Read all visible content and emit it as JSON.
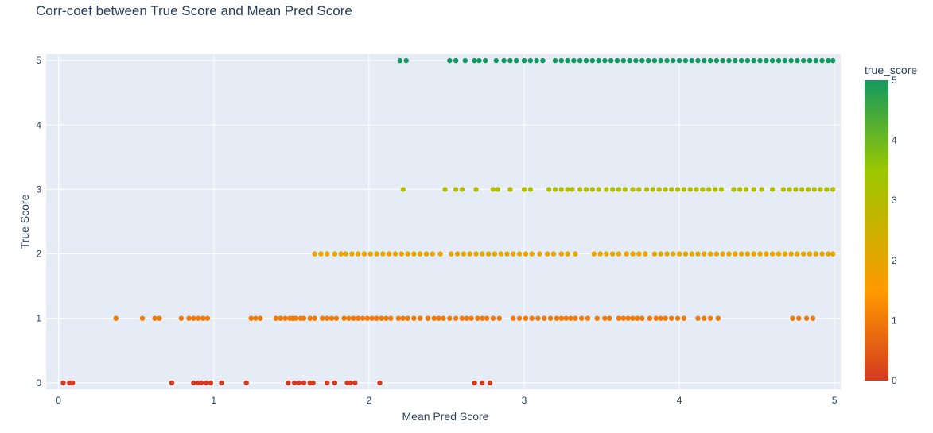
{
  "chart_data": {
    "type": "scatter",
    "title": "Corr-coef between True Score and Mean Pred Score",
    "xlabel": "Mean Pred Score",
    "ylabel": "True Score",
    "xlim": [
      -0.08,
      5.04
    ],
    "ylim": [
      -0.1,
      5.1
    ],
    "x_ticks": [
      "0",
      "1",
      "2",
      "3",
      "4",
      "5"
    ],
    "y_ticks": [
      "0",
      "1",
      "2",
      "3",
      "4",
      "5"
    ],
    "grid": true,
    "colorbar": {
      "title": "true_score",
      "range": [
        0,
        5
      ],
      "ticks": [
        "0",
        "1",
        "2",
        "3",
        "4",
        "5"
      ],
      "colors": [
        "#d33a1f",
        "#ff9a00",
        "#9ac700",
        "#13995f"
      ]
    },
    "series": [
      {
        "y": 0,
        "x": [
          0.03,
          0.07,
          0.08,
          0.09,
          0.73,
          0.87,
          0.9,
          0.92,
          0.95,
          0.98,
          1.05,
          1.21,
          1.48,
          1.52,
          1.55,
          1.58,
          1.62,
          1.64,
          1.73,
          1.78,
          1.86,
          1.88,
          1.91,
          2.07,
          2.68,
          2.73,
          2.78
        ]
      },
      {
        "y": 1,
        "x": [
          0.37,
          0.54,
          0.62,
          0.65,
          0.79,
          0.84,
          0.87,
          0.9,
          0.93,
          0.96,
          1.24,
          1.27,
          1.3,
          1.4,
          1.43,
          1.46,
          1.49,
          1.51,
          1.53,
          1.56,
          1.58,
          1.62,
          1.65,
          1.7,
          1.73,
          1.76,
          1.79,
          1.84,
          1.87,
          1.9,
          1.93,
          1.96,
          1.99,
          2.02,
          2.05,
          2.08,
          2.11,
          2.14,
          2.19,
          2.22,
          2.25,
          2.29,
          2.33,
          2.38,
          2.42,
          2.45,
          2.48,
          2.52,
          2.56,
          2.6,
          2.63,
          2.66,
          2.7,
          2.73,
          2.76,
          2.8,
          2.84,
          2.93,
          2.97,
          3.01,
          3.05,
          3.09,
          3.13,
          3.17,
          3.21,
          3.24,
          3.27,
          3.3,
          3.33,
          3.37,
          3.41,
          3.47,
          3.52,
          3.55,
          3.61,
          3.64,
          3.67,
          3.7,
          3.73,
          3.76,
          3.81,
          3.85,
          3.88,
          3.91,
          3.95,
          3.99,
          4.03,
          4.12,
          4.16,
          4.2,
          4.25,
          4.73,
          4.77,
          4.82,
          4.86
        ]
      },
      {
        "y": 2,
        "x": [
          1.65,
          1.69,
          1.73,
          1.78,
          1.82,
          1.85,
          1.89,
          1.93,
          1.97,
          2.01,
          2.05,
          2.09,
          2.13,
          2.17,
          2.21,
          2.25,
          2.29,
          2.33,
          2.37,
          2.41,
          2.46,
          2.53,
          2.57,
          2.61,
          2.65,
          2.69,
          2.73,
          2.77,
          2.81,
          2.85,
          2.89,
          2.93,
          2.97,
          3.01,
          3.05,
          3.1,
          3.15,
          3.19,
          3.24,
          3.28,
          3.33,
          3.45,
          3.49,
          3.53,
          3.57,
          3.61,
          3.66,
          3.7,
          3.74,
          3.78,
          3.84,
          3.88,
          3.92,
          3.96,
          4.0,
          4.04,
          4.08,
          4.12,
          4.16,
          4.2,
          4.24,
          4.28,
          4.32,
          4.36,
          4.4,
          4.44,
          4.48,
          4.52,
          4.56,
          4.6,
          4.64,
          4.68,
          4.72,
          4.76,
          4.8,
          4.84,
          4.88,
          4.92,
          4.96,
          4.99
        ]
      },
      {
        "y": 3,
        "x": [
          2.22,
          2.49,
          2.56,
          2.6,
          2.69,
          2.8,
          2.83,
          2.91,
          3.0,
          3.04,
          3.16,
          3.2,
          3.24,
          3.28,
          3.31,
          3.36,
          3.4,
          3.44,
          3.48,
          3.53,
          3.57,
          3.61,
          3.65,
          3.7,
          3.74,
          3.79,
          3.83,
          3.87,
          3.91,
          3.95,
          3.99,
          4.03,
          4.07,
          4.11,
          4.15,
          4.19,
          4.23,
          4.27,
          4.35,
          4.39,
          4.43,
          4.48,
          4.53,
          4.6,
          4.67,
          4.71,
          4.75,
          4.79,
          4.83,
          4.87,
          4.91,
          4.95,
          4.99
        ]
      },
      {
        "y": 5,
        "x": [
          2.2,
          2.24,
          2.52,
          2.56,
          2.62,
          2.68,
          2.71,
          2.75,
          2.82,
          2.87,
          2.91,
          2.95,
          3.0,
          3.04,
          3.08,
          3.12,
          3.2,
          3.24,
          3.28,
          3.32,
          3.36,
          3.4,
          3.44,
          3.48,
          3.52,
          3.56,
          3.6,
          3.64,
          3.68,
          3.72,
          3.76,
          3.8,
          3.84,
          3.88,
          3.92,
          3.96,
          4.0,
          4.04,
          4.08,
          4.12,
          4.16,
          4.2,
          4.24,
          4.28,
          4.32,
          4.36,
          4.4,
          4.44,
          4.48,
          4.52,
          4.56,
          4.6,
          4.64,
          4.68,
          4.72,
          4.76,
          4.8,
          4.84,
          4.88,
          4.92,
          4.96,
          4.99
        ]
      }
    ]
  }
}
